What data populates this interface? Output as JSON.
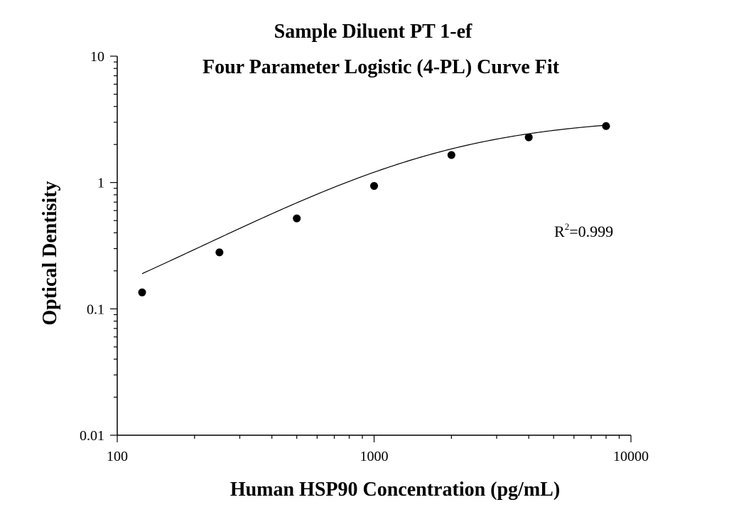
{
  "chart_data": {
    "type": "scatter",
    "title": "Sample Diluent PT 1-ef",
    "subtitle": "Four Parameter Logistic (4-PL) Curve Fit",
    "xlabel": "Human HSP90 Concentration (pg/mL)",
    "ylabel": "Optical Dentisity",
    "xscale": "log",
    "yscale": "log",
    "xlim": [
      100,
      10000
    ],
    "ylim": [
      0.01,
      10
    ],
    "xticks": [
      100,
      1000,
      10000
    ],
    "xtick_labels": [
      "100",
      "1000",
      "10000"
    ],
    "yticks": [
      0.01,
      0.1,
      1,
      10
    ],
    "ytick_labels": [
      "0.01",
      "0.1",
      "1",
      "10"
    ],
    "grid": false,
    "series": [
      {
        "x": [
          125,
          250,
          500,
          1000,
          2000,
          4000,
          8000
        ],
        "y": [
          0.135,
          0.28,
          0.52,
          0.94,
          1.65,
          2.28,
          2.8
        ]
      }
    ],
    "fit_curve": {
      "model": "4PL",
      "params": {
        "A": 0.03,
        "B": 1.15,
        "C": 1650,
        "D": 3.3
      }
    },
    "annotation": {
      "base": "R",
      "sup": "2",
      "rest": "=0.999"
    },
    "colors": {
      "marker": "#000000",
      "line": "#000000"
    }
  }
}
